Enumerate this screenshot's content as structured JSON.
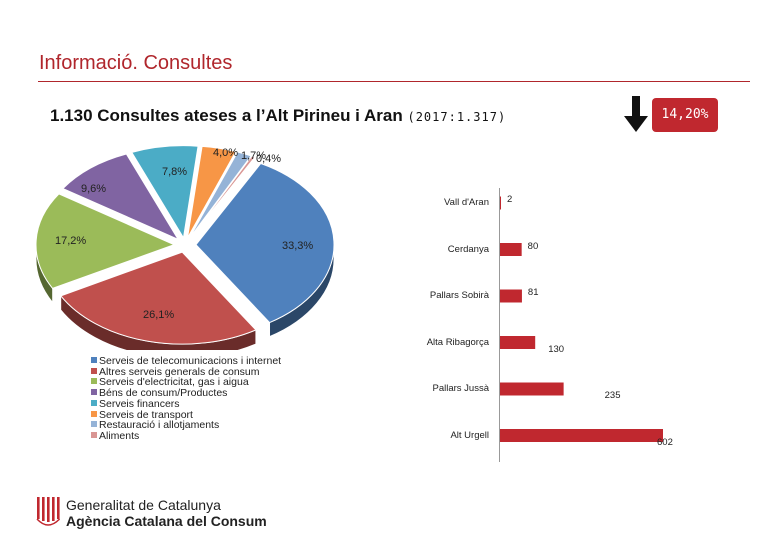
{
  "header": {
    "title": "Informació. Consultes",
    "subtitle_main": "1.130 Consultes ateses a l’Alt Pirineu i Aran",
    "subtitle_paren": "(2017:1.317)",
    "change_badge": "14,20%",
    "arrow_icon": "arrow-down-icon"
  },
  "colors": {
    "accent": "#b0262c",
    "bar": "#c0282f"
  },
  "chart_data": [
    {
      "type": "pie",
      "title": "",
      "legend_placement": "bottom-left",
      "slices": [
        {
          "label": "Serveis de telecomunicacions i internet",
          "value": 33.3,
          "value_label": "33,3%",
          "color": "#4f81bd"
        },
        {
          "label": "Altres serveis generals de consum",
          "value": 26.1,
          "value_label": "26,1%",
          "color": "#c0504d"
        },
        {
          "label": "Serveis d'electricitat, gas i aigua",
          "value": 17.2,
          "value_label": "17,2%",
          "color": "#9bbb59"
        },
        {
          "label": "Béns de consum/Productes",
          "value": 9.6,
          "value_label": "9,6%",
          "color": "#8064a2"
        },
        {
          "label": "Serveis financers",
          "value": 7.8,
          "value_label": "7,8%",
          "color": "#4bacc6"
        },
        {
          "label": "Serveis de transport",
          "value": 4.0,
          "value_label": "4,0%",
          "color": "#f79646"
        },
        {
          "label": "Restauració i allotjaments",
          "value": 1.7,
          "value_label": "1,7%",
          "color": "#95b3d7"
        },
        {
          "label": "Aliments",
          "value": 0.4,
          "value_label": "0,4%",
          "color": "#d99694"
        }
      ]
    },
    {
      "type": "bar",
      "orientation": "horizontal",
      "title": "",
      "categories": [
        "Vall d'Aran",
        "Cerdanya",
        "Pallars Sobirà",
        "Alta Ribagorça",
        "Pallars Jussà",
        "Alt Urgell"
      ],
      "values": [
        2,
        80,
        81,
        130,
        235,
        602
      ],
      "value_labels": [
        "2",
        "80",
        "81",
        "130",
        "235",
        "602"
      ],
      "xlim": [
        0,
        602
      ],
      "grid": false
    }
  ],
  "footer": {
    "org_line1": "Generalitat de Catalunya",
    "org_line2": "Agència Catalana del Consum",
    "logo_icon": "generalitat-logo-icon"
  }
}
